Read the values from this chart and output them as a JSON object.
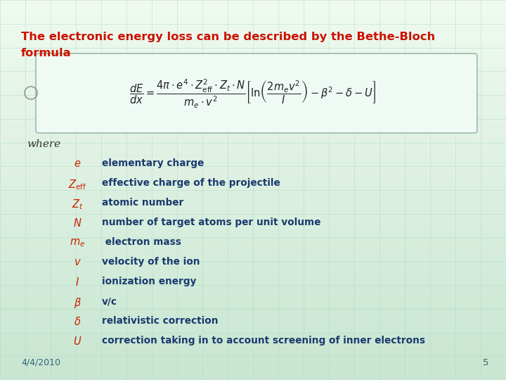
{
  "title_line1": "The electronic energy loss can be described by the Bethe-Bloch",
  "title_line2": "formula",
  "title_color": "#cc1100",
  "bg_color": "#c8eedd",
  "bg_top_color": "#e8f8f0",
  "formula_box_color": "#f0faf5",
  "formula_box_border": "#99bbaa",
  "where_text": "where",
  "where_color": "#333333",
  "symbols_latex": [
    "e",
    "Z_{\\mathrm{eff}}",
    "Z_t",
    "N",
    "m_e",
    "v",
    "I",
    "\\beta",
    "\\delta",
    "U"
  ],
  "descriptions": [
    "elementary charge",
    "effective charge of the projectile",
    "atomic number",
    "number of target atoms per unit volume",
    " electron mass",
    "velocity of the ion",
    "ionization energy",
    "v/c",
    "relativistic correction",
    "correction taking in to account screening of inner electrons"
  ],
  "symbol_color": "#cc2200",
  "desc_color": "#1a3a6e",
  "date_text": "4/4/2010",
  "page_num": "5",
  "footer_date_color": "#336677",
  "footer_num_color": "#555555",
  "grid_color": "#a8d8c0",
  "grid_alpha": 0.6,
  "formula_color": "#222222"
}
